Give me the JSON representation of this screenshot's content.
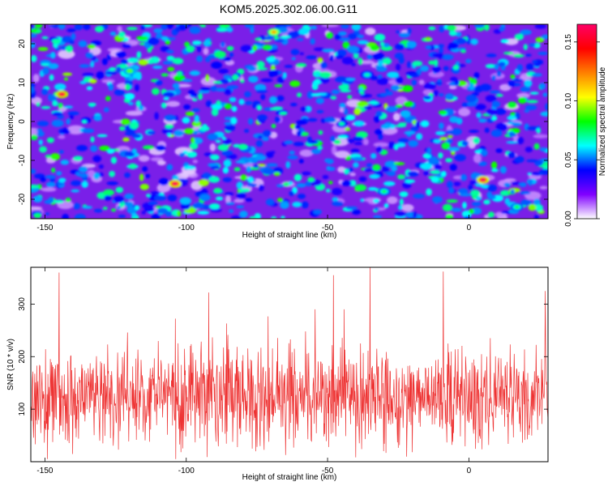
{
  "title": "KOM5.2025.302.06.00.G11",
  "colorbar": {
    "label": "Normalized spectral amplitude",
    "ticks": [
      "0.00",
      "0.05",
      "0.10",
      "0.15"
    ],
    "tick_values": [
      0.0,
      0.05,
      0.1,
      0.15
    ],
    "range": [
      0.0,
      0.165
    ],
    "colors": [
      "#ffffff",
      "#8000ff",
      "#0000ff",
      "#00ffff",
      "#00ff00",
      "#ffff00",
      "#ff8000",
      "#ff0000",
      "#ff0066"
    ]
  },
  "chart_data": [
    {
      "type": "heatmap",
      "title": "KOM5.2025.302.06.00.G11",
      "xlabel": "Height of straight line (km)",
      "ylabel": "Frequency (Hz)",
      "xlim": [
        -155,
        28
      ],
      "ylim": [
        -25,
        25
      ],
      "xticks": [
        -150,
        -100,
        -50,
        0
      ],
      "yticks": [
        -20,
        -10,
        0,
        10,
        20
      ],
      "xtick_labels": [
        "-150",
        "-100",
        "-50",
        "0"
      ],
      "ytick_labels": [
        "-20",
        "-10",
        "0",
        "10",
        "20"
      ],
      "value_label": "Normalized spectral amplitude",
      "value_range": [
        0.0,
        0.165
      ],
      "hotspots": [
        {
          "x": -144,
          "y": 7,
          "value": 0.16
        },
        {
          "x": -104,
          "y": -16,
          "value": 0.165
        },
        {
          "x": 5,
          "y": -15,
          "value": 0.165
        },
        {
          "x": -69,
          "y": 23,
          "value": 0.12
        },
        {
          "x": -120,
          "y": 13,
          "value": 0.09
        },
        {
          "x": -30,
          "y": -18,
          "value": 0.08
        },
        {
          "x": 17,
          "y": -22,
          "value": 0.08
        },
        {
          "x": -36,
          "y": 12,
          "value": 0.07
        }
      ]
    },
    {
      "type": "line",
      "xlabel": "Height of straight line (km)",
      "ylabel": "SNR (10 * v/v)",
      "xlim": [
        -155,
        28
      ],
      "ylim": [
        0,
        370
      ],
      "xticks": [
        -150,
        -100,
        -50,
        0
      ],
      "yticks": [
        100,
        200,
        300
      ],
      "xtick_labels": [
        "-150",
        "-100",
        "-50",
        "0"
      ],
      "ytick_labels": [
        "100",
        "200",
        "300"
      ],
      "series": [
        {
          "name": "SNR",
          "color": "#ee3333",
          "baseline": 120,
          "typical_range": [
            20,
            250
          ],
          "peaks": [
            {
              "x": -145,
              "y": 360
            },
            {
              "x": -92,
              "y": 322
            },
            {
              "x": -48,
              "y": 355
            },
            {
              "x": -35,
              "y": 372
            },
            {
              "x": -9,
              "y": 362
            },
            {
              "x": 27,
              "y": 325
            }
          ]
        }
      ]
    }
  ]
}
